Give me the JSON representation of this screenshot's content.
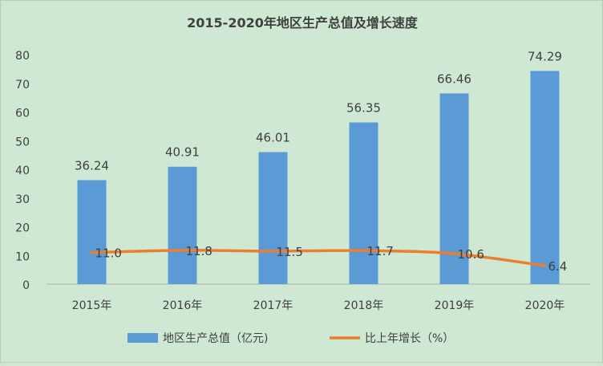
{
  "colors": {
    "background": "#cfe8d3",
    "bar": "#5b9bd5",
    "line": "#ed7d31",
    "text": "#404040",
    "title": "#404040"
  },
  "chart_data": {
    "type": "bar",
    "title": "2015-2020年地区生产总值及增长速度",
    "categories": [
      "2015年",
      "2016年",
      "2017年",
      "2018年",
      "2019年",
      "2020年"
    ],
    "ylim": [
      0,
      80
    ],
    "yticks": [
      0,
      10,
      20,
      30,
      40,
      50,
      60,
      70,
      80
    ],
    "grid": false,
    "legend_position": "bottom",
    "series": [
      {
        "name": "地区生产总值（亿元)",
        "type": "bar",
        "values": [
          36.24,
          40.91,
          46.01,
          56.35,
          66.46,
          74.29
        ],
        "labels": [
          "36.24",
          "40.91",
          "46.01",
          "56.35",
          "66.46",
          "74.29"
        ]
      },
      {
        "name": "比上年增长（%）",
        "type": "line",
        "values": [
          11.0,
          11.8,
          11.5,
          11.7,
          10.6,
          6.4
        ],
        "labels": [
          "11.0",
          "11.8",
          "11.5",
          "11.7",
          "10.6",
          "6.4"
        ]
      }
    ]
  }
}
